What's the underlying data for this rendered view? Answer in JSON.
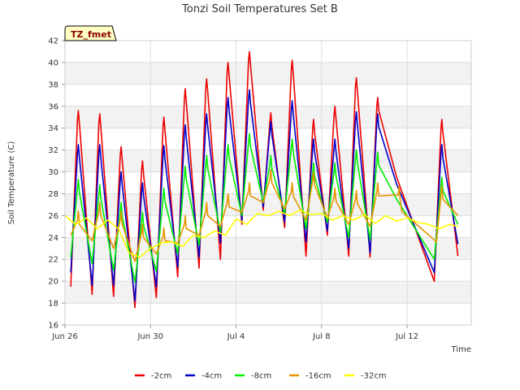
{
  "chart_data": {
    "type": "line",
    "title": "Tonzi Soil Temperatures Set B",
    "xlabel": "Time",
    "ylabel": "Soil Temperature (C)",
    "badge": "TZ_fmet",
    "ylim": [
      16,
      42
    ],
    "yticks": [
      16,
      18,
      20,
      22,
      24,
      26,
      28,
      30,
      32,
      34,
      36,
      38,
      40,
      42
    ],
    "xlim": [
      "2023-06-26",
      "2023-07-15"
    ],
    "xticks": [
      {
        "value": "2023-06-26",
        "label": "Jun 26"
      },
      {
        "value": "2023-06-30",
        "label": "Jun 30"
      },
      {
        "value": "2023-07-04",
        "label": "Jul 4"
      },
      {
        "value": "2023-07-08",
        "label": "Jul 8"
      },
      {
        "value": "2023-07-12",
        "label": "Jul 12"
      }
    ],
    "grid": true,
    "legend_position": "bottom",
    "daily_peak_time": "15:00",
    "daily_min_time": "06:30",
    "series": [
      {
        "name": "-2cm",
        "color": "#ee0000",
        "daily_min": [
          19.5,
          18.8,
          18.6,
          17.6,
          18.5,
          20.4,
          21.2,
          22.0,
          25.2,
          26.5,
          24.9,
          22.3,
          24.2,
          22.3,
          22.2
        ],
        "daily_max": [
          35.6,
          35.3,
          32.3,
          31.0,
          35.0,
          37.6,
          38.5,
          40.0,
          41.0,
          35.4,
          40.2,
          34.8,
          36.0,
          38.6,
          36.8,
          34.8
        ],
        "gap": {
          "start": "2023-07-11T12:00",
          "end": "2023-07-13T06:30",
          "end_value": 20.0
        },
        "end": {
          "date": "2023-07-14T09:00",
          "value": 22.3
        }
      },
      {
        "name": "-4cm",
        "color": "#0000cc",
        "daily_min": [
          20.8,
          19.6,
          19.6,
          18.2,
          19.5,
          21.3,
          22.2,
          23.5,
          25.6,
          26.8,
          25.4,
          23.6,
          24.6,
          23.0,
          22.6
        ],
        "daily_max": [
          32.5,
          32.5,
          30.0,
          29.0,
          32.4,
          34.3,
          35.3,
          36.8,
          37.5,
          34.6,
          36.5,
          33.0,
          33.0,
          35.5,
          35.3,
          32.5
        ],
        "gap": {
          "start": "2023-07-11T12:00",
          "end": "2023-07-13T06:30",
          "end_value": 20.8
        },
        "end": {
          "date": "2023-07-14T09:00",
          "value": 23.4
        }
      },
      {
        "name": "-8cm",
        "color": "#00ee00",
        "daily_min": [
          22.2,
          21.6,
          21.0,
          19.9,
          20.9,
          22.5,
          23.3,
          24.5,
          26.0,
          27.2,
          26.2,
          24.8,
          25.4,
          24.0,
          23.8
        ],
        "daily_max": [
          29.3,
          28.8,
          27.2,
          26.3,
          28.5,
          30.5,
          31.5,
          32.5,
          33.5,
          31.5,
          33.0,
          30.8,
          30.8,
          32.0,
          31.8,
          29.5
        ],
        "gap": {
          "start": "2023-07-11T12:00",
          "end": "2023-07-13T06:30",
          "end_value": 22.0
        },
        "end": {
          "date": "2023-07-14T09:00",
          "value": 25.2
        }
      },
      {
        "name": "-16cm",
        "color": "#e69500",
        "daily_min": [
          24.2,
          23.7,
          23.0,
          21.8,
          22.5,
          23.5,
          24.2,
          25.0,
          26.3,
          27.2,
          26.6,
          25.6,
          25.8,
          25.2,
          25.0
        ],
        "daily_max": [
          26.4,
          27.2,
          26.4,
          25.2,
          24.9,
          26.0,
          27.2,
          28.0,
          29.0,
          30.2,
          29.0,
          30.0,
          28.5,
          28.3,
          29.0,
          28.7
        ],
        "gap": {
          "start": "2023-07-11T18:00",
          "end": "2023-07-13T09:00",
          "end_value": 23.6
        },
        "end": {
          "date": "2023-07-14T09:00",
          "value": 26.0
        }
      },
      {
        "name": "-32cm",
        "color": "#ffff00",
        "points": [
          [
            "2023-06-26T00:00",
            26.0
          ],
          [
            "2023-06-26T12:00",
            25.2
          ],
          [
            "2023-06-27T00:00",
            25.8
          ],
          [
            "2023-06-27T12:00",
            24.8
          ],
          [
            "2023-06-28T00:00",
            25.6
          ],
          [
            "2023-06-28T12:00",
            24.8
          ],
          [
            "2023-06-29T00:00",
            22.6
          ],
          [
            "2023-06-29T12:00",
            22.2
          ],
          [
            "2023-06-30T00:00",
            23.0
          ],
          [
            "2023-06-30T12:00",
            23.5
          ],
          [
            "2023-07-01T00:00",
            23.6
          ],
          [
            "2023-07-01T12:00",
            23.2
          ],
          [
            "2023-07-02T00:00",
            24.2
          ],
          [
            "2023-07-02T12:00",
            24.0
          ],
          [
            "2023-07-03T00:00",
            24.6
          ],
          [
            "2023-07-03T12:00",
            24.2
          ],
          [
            "2023-07-04T00:00",
            25.7
          ],
          [
            "2023-07-04T12:00",
            25.2
          ],
          [
            "2023-07-05T00:00",
            26.2
          ],
          [
            "2023-07-05T12:00",
            26.0
          ],
          [
            "2023-07-06T00:00",
            26.4
          ],
          [
            "2023-07-06T12:00",
            26.0
          ],
          [
            "2023-07-07T00:00",
            26.5
          ],
          [
            "2023-07-07T12:00",
            26.1
          ],
          [
            "2023-07-08T00:00",
            26.2
          ],
          [
            "2023-07-08T12:00",
            25.6
          ],
          [
            "2023-07-09T00:00",
            26.0
          ],
          [
            "2023-07-09T12:00",
            25.6
          ],
          [
            "2023-07-10T00:00",
            26.1
          ],
          [
            "2023-07-10T12:00",
            25.3
          ],
          [
            "2023-07-11T00:00",
            26.0
          ],
          [
            "2023-07-11T12:00",
            25.5
          ],
          [
            "2023-07-12T00:00",
            25.8
          ],
          [
            "2023-07-12T12:00",
            25.4
          ],
          [
            "2023-07-13T00:00",
            25.2
          ],
          [
            "2023-07-13T12:00",
            24.8
          ],
          [
            "2023-07-14T00:00",
            25.2
          ],
          [
            "2023-07-14T09:00",
            25.0
          ]
        ]
      }
    ]
  }
}
